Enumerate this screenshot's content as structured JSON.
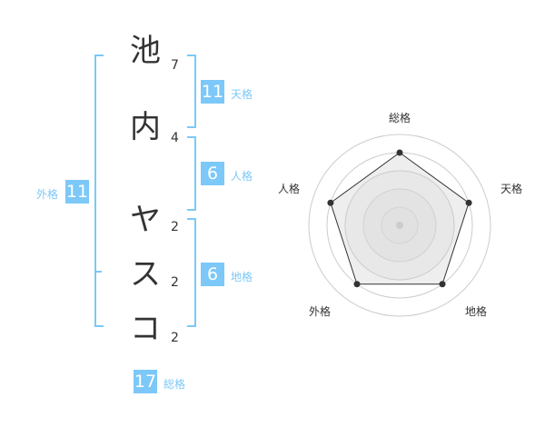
{
  "name": {
    "chars": [
      {
        "char": "池",
        "strokes": "7"
      },
      {
        "char": "内",
        "strokes": "4"
      },
      {
        "char": "ヤ",
        "strokes": "2"
      },
      {
        "char": "ス",
        "strokes": "2"
      },
      {
        "char": "コ",
        "strokes": "2"
      }
    ]
  },
  "kaku": {
    "tenkaku": {
      "label": "天格",
      "value": "11"
    },
    "jinkaku": {
      "label": "人格",
      "value": "6"
    },
    "chikaku": {
      "label": "地格",
      "value": "6"
    },
    "gaikaku": {
      "label": "外格",
      "value": "11"
    },
    "soukaku": {
      "label": "総格",
      "value": "17"
    }
  },
  "accent": "#7cc8f8",
  "chart_data": {
    "type": "radar",
    "axes": [
      "総格",
      "天格",
      "地格",
      "外格",
      "人格"
    ],
    "values": [
      4,
      4,
      4,
      4,
      4
    ],
    "range": [
      0,
      5
    ],
    "rings": 5
  }
}
